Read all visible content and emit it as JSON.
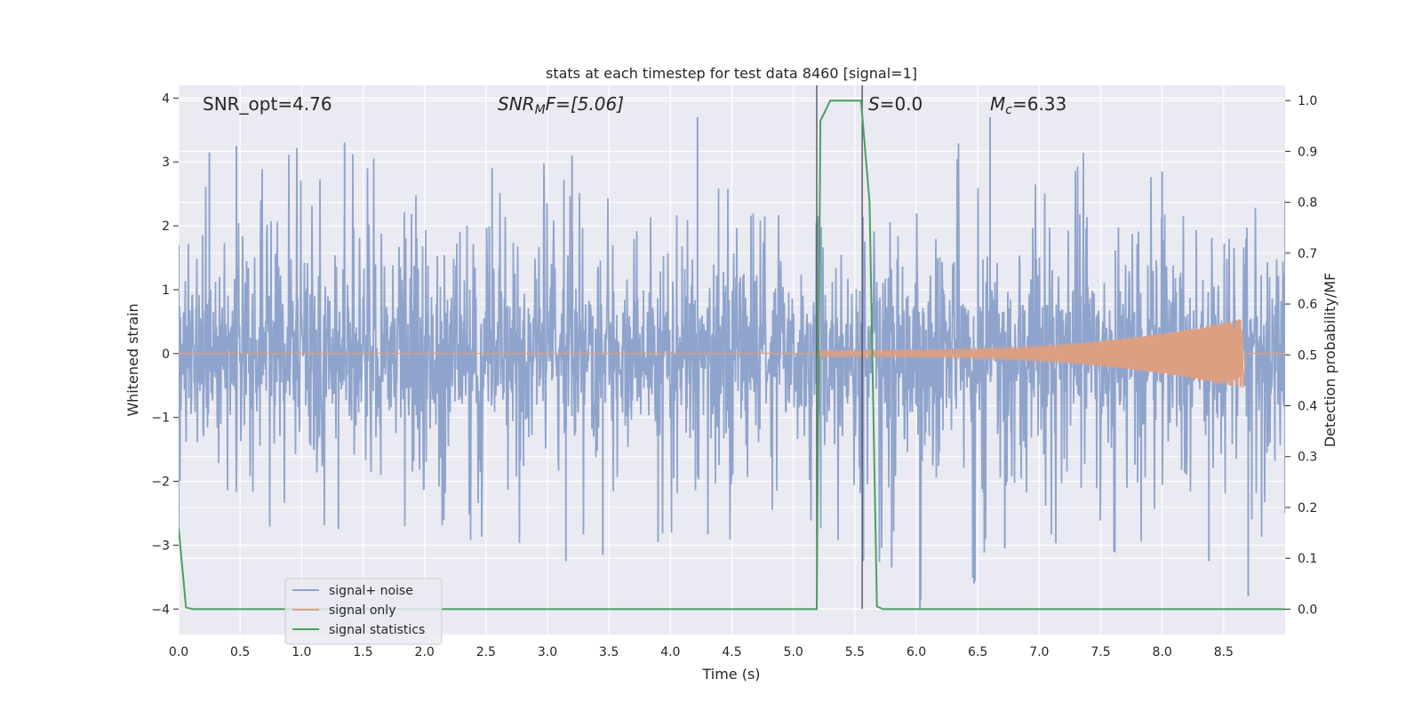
{
  "chart_data": {
    "type": "line",
    "title": "stats at each timestep for test data 8460 [signal=1]",
    "xlabel": "Time (s)",
    "ylabel": "Whitened strain",
    "ylabel_right": "Detection probability/MF",
    "xlim": [
      0.0,
      9.0
    ],
    "ylim": [
      -4.4,
      4.2
    ],
    "ylim_right": [
      -0.05,
      1.03
    ],
    "x_ticks": [
      0.0,
      0.5,
      1.0,
      1.5,
      2.0,
      2.5,
      3.0,
      3.5,
      4.0,
      4.5,
      5.0,
      5.5,
      6.0,
      6.5,
      7.0,
      7.5,
      8.0,
      8.5
    ],
    "x_tick_labels": [
      "0.0",
      "0.5",
      "1.0",
      "1.5",
      "2.0",
      "2.5",
      "3.0",
      "3.5",
      "4.0",
      "4.5",
      "5.0",
      "5.5",
      "6.0",
      "6.5",
      "7.0",
      "7.5",
      "8.0",
      "8.5"
    ],
    "y_ticks": [
      4,
      3,
      2,
      1,
      0,
      -1,
      -2,
      -3,
      -4
    ],
    "y_tick_labels": [
      "4",
      "3",
      "2",
      "1",
      "0",
      "−1",
      "−2",
      "−3",
      "−4"
    ],
    "y_ticks_right": [
      1.0,
      0.9,
      0.8,
      0.7,
      0.6,
      0.5,
      0.4,
      0.3,
      0.2,
      0.1,
      0.0
    ],
    "y_tick_labels_right": [
      "1.0",
      "0.9",
      "0.8",
      "0.7",
      "0.6",
      "0.5",
      "0.4",
      "0.3",
      "0.2",
      "0.1",
      "0.0"
    ],
    "grid": true,
    "legend_position": "lower-left",
    "annotations": {
      "snr_opt": "SNR_opt=4.76",
      "snr_mf_sym": "SNR",
      "snr_mf_sub": "M",
      "snr_mf_rest": "F=[5.06]",
      "s_sym": "S",
      "s_rest": "=0.0",
      "mc_sym": "M",
      "mc_sub": "c",
      "mc_rest": "=6.33"
    },
    "vlines_x": [
      5.19,
      5.56
    ],
    "series": [
      {
        "name": "signal+ noise",
        "color": "#8fa4cc",
        "style": "dense-noise",
        "amplitude_typical": 1.9,
        "envelope_upper": [
          [
            0.0,
            1.7
          ],
          [
            0.25,
            3.15
          ],
          [
            0.47,
            3.25
          ],
          [
            1.35,
            3.3
          ],
          [
            2.55,
            2.9
          ],
          [
            3.2,
            3.1
          ],
          [
            4.22,
            3.7
          ],
          [
            5.2,
            2.15
          ],
          [
            6.6,
            3.7
          ],
          [
            8.0,
            2.85
          ],
          [
            9.0,
            2.4
          ]
        ],
        "envelope_lower": [
          [
            0.0,
            -2.8
          ],
          [
            1.3,
            -2.75
          ],
          [
            3.15,
            -3.25
          ],
          [
            3.45,
            -3.15
          ],
          [
            3.9,
            -2.95
          ],
          [
            5.57,
            -3.25
          ],
          [
            5.8,
            -3.35
          ],
          [
            6.03,
            -4.0
          ],
          [
            6.47,
            -3.6
          ],
          [
            6.72,
            -3.05
          ],
          [
            8.38,
            -3.25
          ],
          [
            8.7,
            -3.8
          ],
          [
            9.0,
            -2.5
          ]
        ]
      },
      {
        "name": "signal only",
        "color": "#dd9f82",
        "style": "chirp",
        "t_start": 5.2,
        "t_end": 8.66,
        "amp_start": 0.05,
        "amp_end": 0.55
      },
      {
        "name": "signal statistics",
        "color": "#4aa05f",
        "axis": "right",
        "x": [
          0.0,
          0.06,
          0.12,
          5.19,
          5.22,
          5.3,
          5.55,
          5.62,
          5.68,
          5.73,
          9.0
        ],
        "y": [
          0.16,
          0.003,
          0.0,
          0.0,
          0.96,
          1.0,
          1.0,
          0.8,
          0.005,
          0.0,
          0.0
        ]
      }
    ]
  }
}
